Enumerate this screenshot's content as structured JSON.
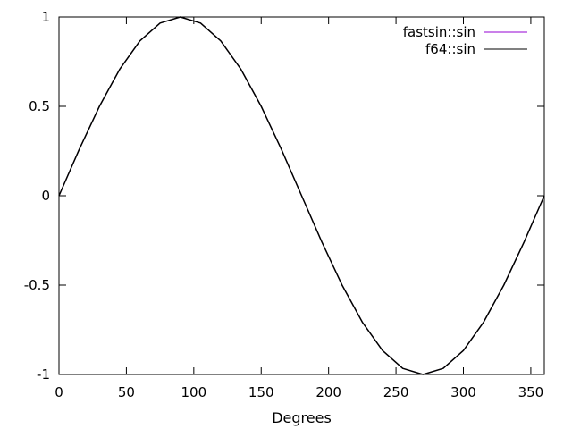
{
  "chart_data": {
    "type": "line",
    "title": "",
    "xlabel": "Degrees",
    "ylabel": "",
    "xlim": [
      0,
      360
    ],
    "ylim": [
      -1,
      1
    ],
    "x_ticks": [
      0,
      50,
      100,
      150,
      200,
      250,
      300,
      350
    ],
    "x_tick_labels": [
      "0",
      "50",
      "100",
      "150",
      "200",
      "250",
      "300",
      "350"
    ],
    "y_ticks": [
      1,
      0.5,
      0,
      -0.5,
      -1
    ],
    "y_tick_labels": [
      "1",
      "0.5",
      "0",
      "-0.5",
      "-1"
    ],
    "grid": false,
    "legend": "top-right",
    "x": [
      0,
      15,
      30,
      45,
      60,
      75,
      90,
      105,
      120,
      135,
      150,
      165,
      180,
      195,
      210,
      225,
      240,
      255,
      270,
      285,
      300,
      315,
      330,
      345,
      360
    ],
    "series": [
      {
        "name": "fastsin::sin",
        "color": "#9400d3",
        "values": [
          0,
          0.259,
          0.5,
          0.707,
          0.866,
          0.966,
          1,
          0.966,
          0.866,
          0.707,
          0.5,
          0.259,
          0,
          -0.259,
          -0.5,
          -0.707,
          -0.866,
          -0.966,
          -1,
          -0.966,
          -0.866,
          -0.707,
          -0.5,
          -0.259,
          0
        ]
      },
      {
        "name": "f64::sin",
        "color": "#000000",
        "values": [
          0,
          0.259,
          0.5,
          0.707,
          0.866,
          0.966,
          1,
          0.966,
          0.866,
          0.707,
          0.5,
          0.259,
          0,
          -0.259,
          -0.5,
          -0.707,
          -0.866,
          -0.966,
          -1,
          -0.966,
          -0.866,
          -0.707,
          -0.5,
          -0.259,
          0
        ]
      }
    ]
  }
}
